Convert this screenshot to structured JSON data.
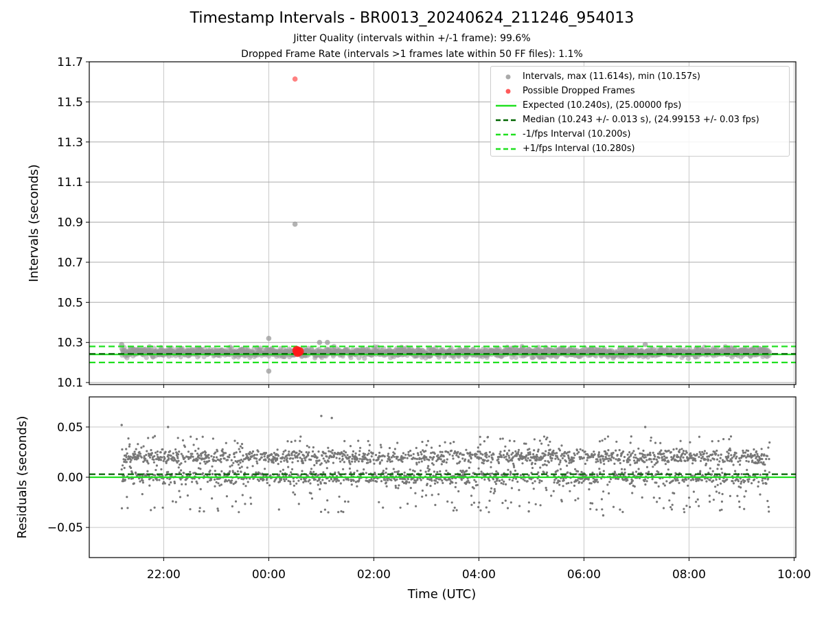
{
  "figure": {
    "title": "Timestamp Intervals - BR0013_20240624_211246_954013",
    "subtitle_1": "Jitter Quality (intervals within +/-1 frame): 99.6%",
    "subtitle_2": "Dropped Frame Rate (intervals >1 frames late within 50 FF files): 1.1%"
  },
  "legend": [
    {
      "label": "Intervals, max (11.614s), min (10.157s)",
      "kind": "dot",
      "color": "#999999"
    },
    {
      "label": "Possible Dropped Frames",
      "kind": "dot",
      "color": "#ff5a5a"
    },
    {
      "label": "Expected (10.240s), (25.00000 fps)",
      "kind": "solid",
      "color": "#1fe01f"
    },
    {
      "label": "Median (10.243 +/- 0.013 s), (24.99153 +/- 0.03 fps)",
      "kind": "dashed",
      "color": "#006400"
    },
    {
      "label": "-1/fps Interval (10.200s)",
      "kind": "dashed",
      "color": "#1fe01f"
    },
    {
      "label": "+1/fps Interval (10.280s)",
      "kind": "dashed",
      "color": "#1fe01f"
    }
  ],
  "chart_data": [
    {
      "type": "scatter",
      "panel": "intervals",
      "ylabel": "Intervals (seconds)",
      "ylim": [
        10.09,
        11.7
      ],
      "yticks": [
        10.1,
        10.3,
        10.5,
        10.7,
        10.9,
        11.1,
        11.3,
        11.5,
        11.7
      ],
      "ytick_labels": [
        "10.1",
        "10.3",
        "10.5",
        "10.7",
        "10.9",
        "11.1",
        "11.3",
        "11.5",
        "11.7"
      ],
      "grid": true,
      "legend_placement": "upper right",
      "series": [
        {
          "name": "Intervals, max (11.614s), min (10.157s)",
          "color": "#999999",
          "time_range": [
            "21:12",
            "09:32"
          ],
          "band_center": 10.25,
          "band_range": [
            10.21,
            10.29
          ],
          "notable_points": [
            {
              "time": "00:30",
              "y": 10.89
            },
            {
              "time": "00:00",
              "y": 10.32
            },
            {
              "time": "00:00",
              "y": 10.157
            },
            {
              "time": "00:58",
              "y": 10.3
            },
            {
              "time": "01:07",
              "y": 10.3
            },
            {
              "time": "21:12",
              "y": 10.29
            },
            {
              "time": "07:10",
              "y": 10.29
            }
          ]
        },
        {
          "name": "Possible Dropped Frames",
          "color": "#ff5a5a",
          "points": [
            {
              "time": "00:30",
              "y": 11.614
            },
            {
              "time": "00:32",
              "y": 10.26
            },
            {
              "time": "00:33",
              "y": 10.25
            },
            {
              "time": "00:35",
              "y": 10.255
            }
          ]
        }
      ],
      "reference_lines": [
        {
          "name": "Expected (10.240s), (25.00000 fps)",
          "y": 10.24,
          "style": "solid",
          "color": "#1fe01f"
        },
        {
          "name": "Median (10.243 +/- 0.013 s), (24.99153 +/- 0.03 fps)",
          "y": 10.243,
          "style": "dashed",
          "color": "#006400"
        },
        {
          "name": "-1/fps Interval (10.200s)",
          "y": 10.2,
          "style": "dashed",
          "color": "#1fe01f"
        },
        {
          "name": "+1/fps Interval (10.280s)",
          "y": 10.28,
          "style": "dashed",
          "color": "#1fe01f"
        }
      ]
    },
    {
      "type": "scatter",
      "panel": "residuals",
      "ylabel": "Residuals (seconds)",
      "xlabel": "Time (UTC)",
      "ylim": [
        -0.08,
        0.08
      ],
      "yticks": [
        -0.05,
        0.0,
        0.05
      ],
      "ytick_labels": [
        "−0.05",
        "0.00",
        "0.05"
      ],
      "xlim": [
        "20:35",
        "10:02"
      ],
      "xticks": [
        "22:00",
        "00:00",
        "02:00",
        "04:00",
        "06:00",
        "08:00",
        "10:00"
      ],
      "xtick_labels": [
        "22:00",
        "00:00",
        "02:00",
        "04:00",
        "06:00",
        "08:00",
        "10:00"
      ],
      "grid": true,
      "series": [
        {
          "color": "#777777",
          "time_range": [
            "21:12",
            "09:32"
          ],
          "upper_band_center": 0.02,
          "lower_band_center": 0.0,
          "spread_range": [
            -0.035,
            0.045
          ],
          "notable_points": [
            {
              "time": "01:00",
              "y": 0.061
            },
            {
              "time": "01:12",
              "y": 0.059
            },
            {
              "time": "21:12",
              "y": 0.052
            },
            {
              "time": "22:05",
              "y": 0.05
            },
            {
              "time": "07:10",
              "y": 0.05
            },
            {
              "time": "06:22",
              "y": -0.038
            },
            {
              "time": "04:57",
              "y": -0.034
            }
          ]
        }
      ],
      "reference_lines": [
        {
          "y": 0.0,
          "style": "solid",
          "color": "#1fe01f"
        },
        {
          "y": 0.003,
          "style": "dashed",
          "color": "#006400"
        }
      ]
    }
  ]
}
